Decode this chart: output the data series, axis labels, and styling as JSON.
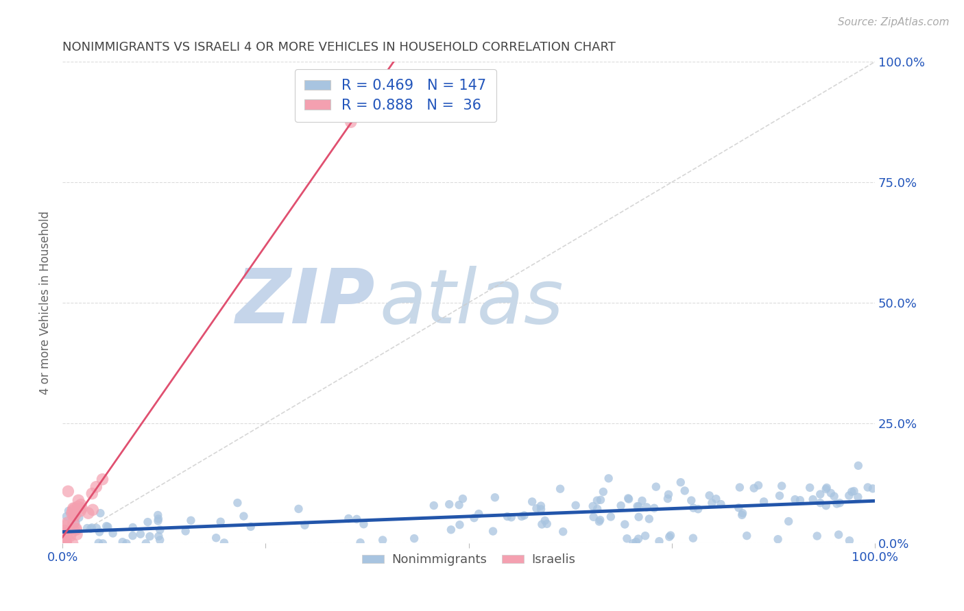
{
  "title": "NONIMMIGRANTS VS ISRAELI 4 OR MORE VEHICLES IN HOUSEHOLD CORRELATION CHART",
  "source": "Source: ZipAtlas.com",
  "ylabel": "4 or more Vehicles in Household",
  "right_yticklabels": [
    "0.0%",
    "25.0%",
    "50.0%",
    "75.0%",
    "100.0%"
  ],
  "color_nonimmigrant": "#a8c4e0",
  "color_israeli": "#f4a0b0",
  "line_color_nonimmigrant": "#2255aa",
  "line_color_israeli": "#e05070",
  "watermark_zip_color": "#c8d8ee",
  "watermark_atlas_color": "#c8d8ee",
  "background_color": "#ffffff",
  "grid_color": "#cccccc",
  "title_color": "#444444",
  "source_color": "#aaaaaa",
  "legend_text_color": "#2255bb",
  "xmin": 0.0,
  "xmax": 1.0,
  "ymin": 0.0,
  "ymax": 1.0
}
